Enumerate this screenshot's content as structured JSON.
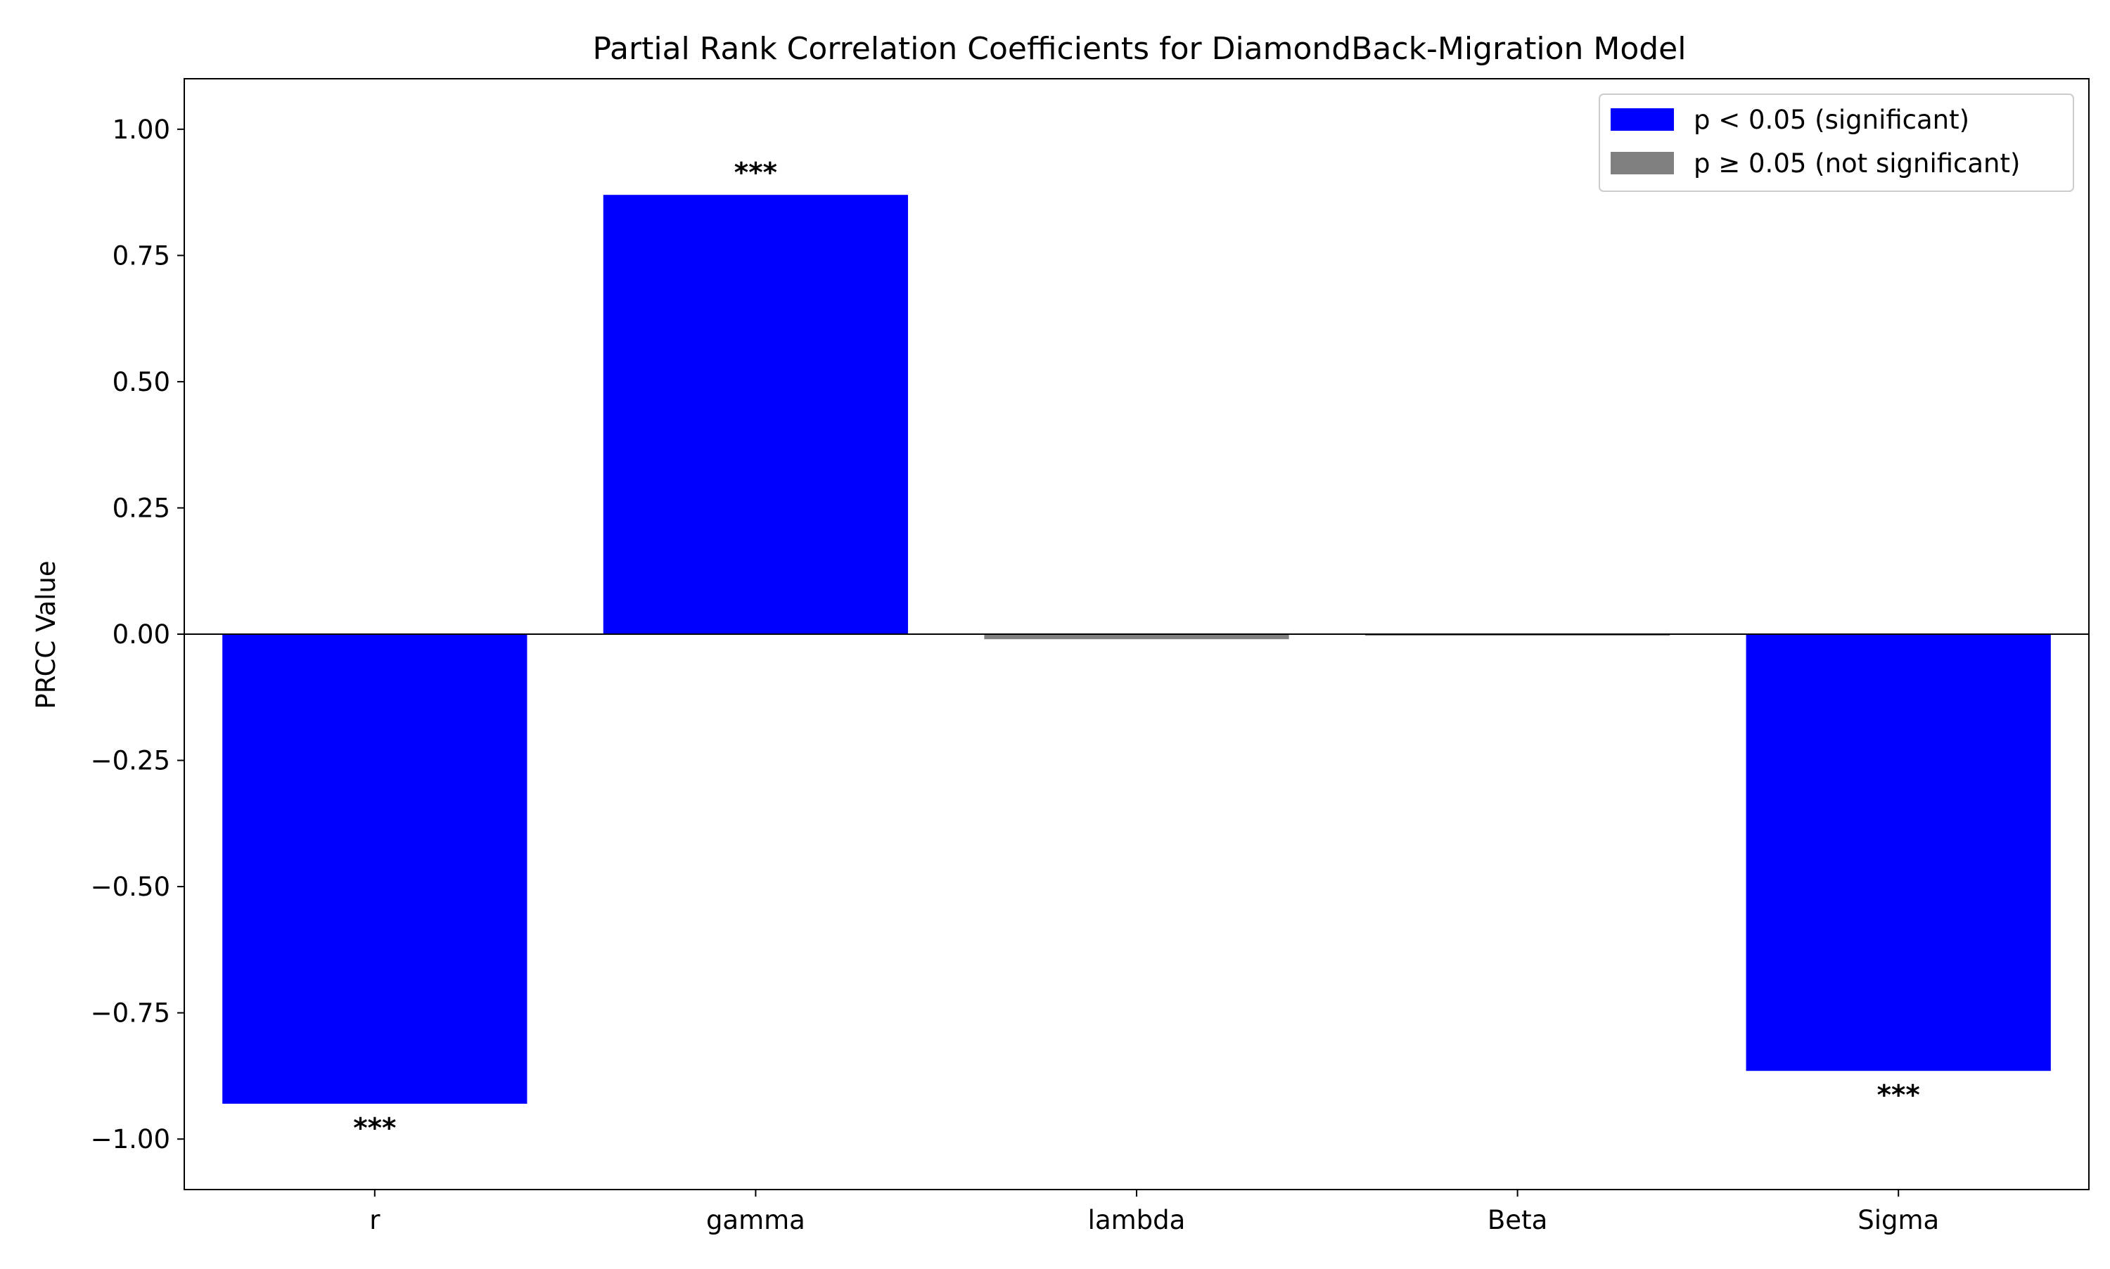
{
  "chart_data": {
    "type": "bar",
    "title": "Partial Rank Correlation Coefficients for DiamondBack-Migration Model",
    "xlabel": "",
    "ylabel": "PRCC Value",
    "categories": [
      "r",
      "gamma",
      "lambda",
      "Beta",
      "Sigma"
    ],
    "values": [
      -0.93,
      0.87,
      -0.01,
      -0.003,
      -0.865
    ],
    "significant": [
      true,
      true,
      false,
      false,
      true
    ],
    "annotations": [
      "***",
      "***",
      "",
      "",
      "***"
    ],
    "ylim": [
      -1.1,
      1.1
    ],
    "yticks": [
      1.0,
      0.75,
      0.5,
      0.25,
      0.0,
      -0.25,
      -0.5,
      -0.75,
      -1.0
    ],
    "ytick_labels": [
      "1.00",
      "0.75",
      "0.50",
      "0.25",
      "0.00",
      "−0.25",
      "−0.50",
      "−0.75",
      "−1.00"
    ],
    "zero_line": true,
    "grid": false,
    "legend": {
      "placement": "top-right",
      "entries": [
        {
          "label": "p < 0.05 (significant)",
          "color": "#0000ff"
        },
        {
          "label": "p ≥ 0.05 (not significant)",
          "color": "#808080"
        }
      ]
    },
    "colors": {
      "significant": "#0000ff",
      "not_significant": "#808080"
    }
  }
}
